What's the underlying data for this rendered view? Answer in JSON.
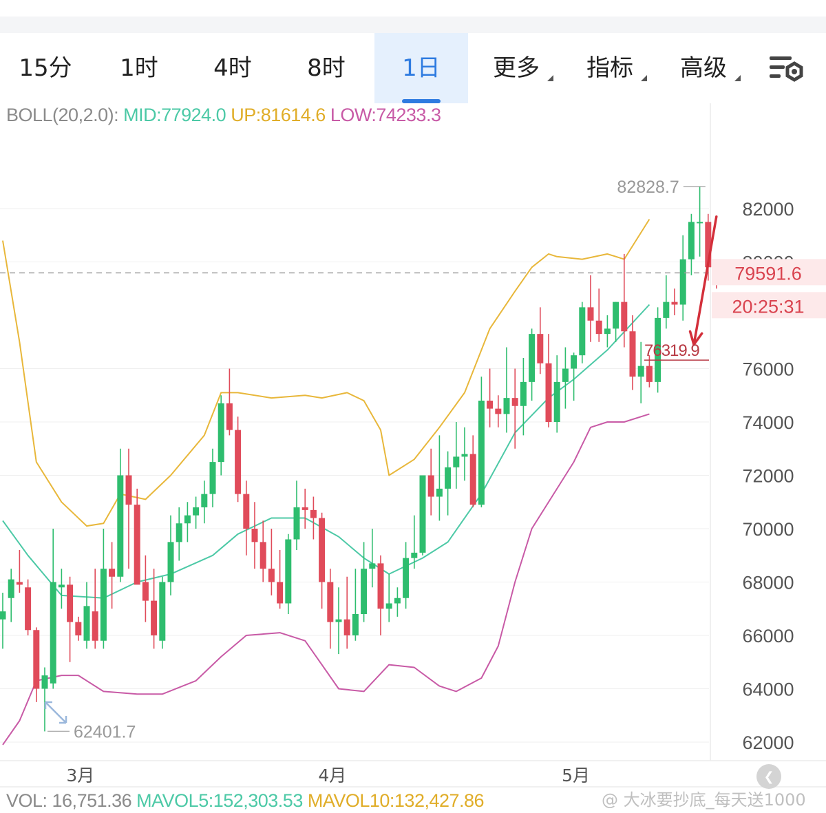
{
  "tabs": [
    {
      "label": "15分",
      "active": false
    },
    {
      "label": "1时",
      "active": false
    },
    {
      "label": "4时",
      "active": false
    },
    {
      "label": "8时",
      "active": false
    },
    {
      "label": "1日",
      "active": true
    },
    {
      "label": "更多",
      "active": false,
      "dropdown": true
    },
    {
      "label": "指标",
      "active": false,
      "dropdown": true
    },
    {
      "label": "高级",
      "active": false,
      "dropdown": true
    }
  ],
  "icons": {
    "settings": "chart-settings-icon",
    "reset": "reset-view-icon",
    "back": "chevron-back-icon"
  },
  "boll_legend": {
    "name": "BOLL(20,2.0):",
    "mid": "MID:77924.0",
    "up": "UP:81614.6",
    "low": "LOW:74233.3"
  },
  "vol_legend": {
    "vol": "VOL: 16,751.36",
    "mavol5": "MAVOL5:152,303.53",
    "mavol10": "MAVOL10:132,427.86"
  },
  "current_price": {
    "value": "79591.6",
    "countdown": "20:25:31"
  },
  "annotations": {
    "target_price": "76319.9",
    "high_label": "82828.7",
    "low_label": "62401.7"
  },
  "colors": {
    "up_candle": "#2ebd6e",
    "down_candle": "#e04b5a",
    "boll_mid": "#4cc9a6",
    "boll_up": "#e8b73a",
    "boll_low": "#c85aa6",
    "arrow": "#d32f3a",
    "active_tab": "#2e7be0"
  },
  "watermark": "@ 大冰要抄底_每天送1000",
  "chart_data": {
    "type": "candlestick",
    "y_ticks": [
      62000,
      64000,
      66000,
      68000,
      70000,
      72000,
      74000,
      76000,
      80000,
      82000
    ],
    "y_tick_labels": [
      "62000",
      "64000",
      "66000",
      "68000",
      "70000",
      "72000",
      "74000",
      "76000",
      "80000",
      "82000"
    ],
    "x_labels": [
      "3月",
      "4月",
      "5月"
    ],
    "x_label_index": [
      9,
      39,
      68
    ],
    "candles": [
      [
        66600,
        67600,
        65500,
        66900
      ],
      [
        67400,
        68500,
        66500,
        68100
      ],
      [
        68000,
        69200,
        67600,
        67900
      ],
      [
        67800,
        68100,
        66000,
        66200
      ],
      [
        66200,
        66300,
        63500,
        64000
      ],
      [
        64000,
        64800,
        62401.7,
        64500
      ],
      [
        64200,
        70000,
        64000,
        68000
      ],
      [
        67800,
        68500,
        67000,
        67900
      ],
      [
        67900,
        68200,
        65000,
        66500
      ],
      [
        66500,
        66700,
        65800,
        66000
      ],
      [
        65800,
        68000,
        65500,
        67100
      ],
      [
        66900,
        68500,
        65500,
        65800
      ],
      [
        65800,
        70000,
        65500,
        68500
      ],
      [
        68500,
        69500,
        67000,
        68200
      ],
      [
        68200,
        73000,
        68000,
        72000
      ],
      [
        72000,
        73000,
        68500,
        70900
      ],
      [
        70900,
        71500,
        68000,
        67900
      ],
      [
        68000,
        69000,
        66500,
        67300
      ],
      [
        67300,
        68500,
        65500,
        66000
      ],
      [
        65800,
        68200,
        65500,
        68000
      ],
      [
        68000,
        70500,
        67500,
        69500
      ],
      [
        69500,
        70800,
        68800,
        70200
      ],
      [
        70200,
        71000,
        69500,
        70500
      ],
      [
        70500,
        71200,
        70000,
        70800
      ],
      [
        70800,
        71800,
        70200,
        71300
      ],
      [
        71300,
        73000,
        70800,
        72500
      ],
      [
        72500,
        75000,
        72000,
        74700
      ],
      [
        74700,
        76000,
        73500,
        73700
      ],
      [
        73700,
        74200,
        71000,
        71300
      ],
      [
        71300,
        71800,
        69000,
        70000
      ],
      [
        70000,
        71000,
        68500,
        69500
      ],
      [
        69500,
        70300,
        68000,
        68500
      ],
      [
        68500,
        70000,
        67500,
        68000
      ],
      [
        68000,
        69200,
        67000,
        67200
      ],
      [
        67200,
        69800,
        66800,
        69600
      ],
      [
        69600,
        71800,
        69200,
        70800
      ],
      [
        70800,
        71500,
        70000,
        70700
      ],
      [
        70700,
        71200,
        69600,
        70400
      ],
      [
        70400,
        70600,
        67000,
        68000
      ],
      [
        68000,
        68500,
        65500,
        66500
      ],
      [
        66500,
        67800,
        65300,
        66600
      ],
      [
        66600,
        68200,
        65500,
        66000
      ],
      [
        66000,
        68500,
        65800,
        66800
      ],
      [
        66800,
        69500,
        66500,
        68500
      ],
      [
        68500,
        70000,
        67800,
        68700
      ],
      [
        68700,
        69000,
        66000,
        67000
      ],
      [
        67000,
        68300,
        66500,
        67200
      ],
      [
        67200,
        67800,
        66700,
        67400
      ],
      [
        67400,
        69500,
        67000,
        68900
      ],
      [
        68900,
        70500,
        68500,
        69100
      ],
      [
        69100,
        72000,
        69000,
        72000
      ],
      [
        72000,
        73000,
        70500,
        71200
      ],
      [
        71200,
        73500,
        70300,
        71500
      ],
      [
        71500,
        72900,
        70500,
        72300
      ],
      [
        72300,
        74000,
        71500,
        72700
      ],
      [
        72700,
        73800,
        71800,
        72800
      ],
      [
        72800,
        73500,
        70800,
        70900
      ],
      [
        70900,
        75700,
        70800,
        74800
      ],
      [
        74800,
        76000,
        73800,
        74500
      ],
      [
        74500,
        75000,
        73800,
        74300
      ],
      [
        74300,
        76800,
        73600,
        74900
      ],
      [
        74900,
        76000,
        73000,
        74600
      ],
      [
        74600,
        76400,
        73500,
        75500
      ],
      [
        75500,
        77500,
        74800,
        77300
      ],
      [
        77300,
        78300,
        75800,
        76200
      ],
      [
        76200,
        77300,
        73800,
        74000
      ],
      [
        74000,
        76500,
        73600,
        75500
      ],
      [
        75500,
        76800,
        74500,
        76000
      ],
      [
        76000,
        76600,
        74800,
        76500
      ],
      [
        76500,
        78500,
        76200,
        78300
      ],
      [
        78300,
        79500,
        77000,
        77800
      ],
      [
        77800,
        79000,
        77000,
        77300
      ],
      [
        77300,
        78000,
        76800,
        77500
      ],
      [
        77500,
        78500,
        77000,
        78500
      ],
      [
        78500,
        80300,
        76800,
        77400
      ],
      [
        77400,
        78000,
        75200,
        75700
      ],
      [
        75700,
        77000,
        74700,
        76100
      ],
      [
        76100,
        76500,
        75300,
        75500
      ],
      [
        75500,
        78300,
        75100,
        77900
      ],
      [
        77900,
        79500,
        77500,
        78500
      ],
      [
        78500,
        79000,
        78000,
        78400
      ],
      [
        78400,
        81000,
        77800,
        80100
      ],
      [
        80100,
        81800,
        79500,
        81500
      ],
      [
        81500,
        82828.7,
        80200,
        81500
      ],
      [
        81500,
        81800,
        79300,
        79800
      ],
      [
        79900,
        80100,
        79000,
        79591.6
      ]
    ],
    "boll_mid": [
      [
        0,
        70300
      ],
      [
        3,
        69000
      ],
      [
        7,
        67500
      ],
      [
        12,
        67400
      ],
      [
        16,
        68000
      ],
      [
        20,
        68300
      ],
      [
        25,
        69000
      ],
      [
        28,
        69800
      ],
      [
        32,
        70400
      ],
      [
        36,
        70400
      ],
      [
        40,
        69700
      ],
      [
        43,
        68900
      ],
      [
        46,
        68300
      ],
      [
        50,
        68900
      ],
      [
        53,
        69500
      ],
      [
        57,
        71300
      ],
      [
        61,
        73600
      ],
      [
        65,
        74900
      ],
      [
        68,
        75600
      ],
      [
        72,
        76700
      ],
      [
        77,
        78400
      ]
    ],
    "boll_up": [
      [
        0,
        80800
      ],
      [
        2,
        77000
      ],
      [
        4,
        72500
      ],
      [
        7,
        71000
      ],
      [
        10,
        70100
      ],
      [
        12,
        70200
      ],
      [
        14,
        71300
      ],
      [
        17,
        71100
      ],
      [
        20,
        72000
      ],
      [
        24,
        73500
      ],
      [
        26,
        75100
      ],
      [
        28,
        75100
      ],
      [
        32,
        74900
      ],
      [
        36,
        75000
      ],
      [
        38,
        74900
      ],
      [
        41,
        75100
      ],
      [
        43,
        74800
      ],
      [
        45,
        73700
      ],
      [
        46,
        72000
      ],
      [
        49,
        72600
      ],
      [
        52,
        73800
      ],
      [
        55,
        75100
      ],
      [
        58,
        77500
      ],
      [
        61,
        78900
      ],
      [
        63,
        79800
      ],
      [
        65,
        80300
      ],
      [
        66,
        80200
      ],
      [
        69,
        80100
      ],
      [
        72,
        80300
      ],
      [
        74,
        80100
      ],
      [
        77,
        81600
      ]
    ],
    "boll_low": [
      [
        0,
        61900
      ],
      [
        2,
        62800
      ],
      [
        4,
        64300
      ],
      [
        7,
        64500
      ],
      [
        9,
        64500
      ],
      [
        12,
        63900
      ],
      [
        16,
        63800
      ],
      [
        19,
        63800
      ],
      [
        23,
        64300
      ],
      [
        26,
        65200
      ],
      [
        29,
        66000
      ],
      [
        33,
        66100
      ],
      [
        36,
        65800
      ],
      [
        38,
        64900
      ],
      [
        40,
        64000
      ],
      [
        43,
        63900
      ],
      [
        46,
        64900
      ],
      [
        49,
        64800
      ],
      [
        52,
        64100
      ],
      [
        54,
        63900
      ],
      [
        57,
        64400
      ],
      [
        59,
        65600
      ],
      [
        61,
        68000
      ],
      [
        63,
        70000
      ],
      [
        66,
        71500
      ],
      [
        68,
        72500
      ],
      [
        70,
        73800
      ],
      [
        72,
        74000
      ],
      [
        74,
        74000
      ],
      [
        77,
        74300
      ]
    ]
  }
}
